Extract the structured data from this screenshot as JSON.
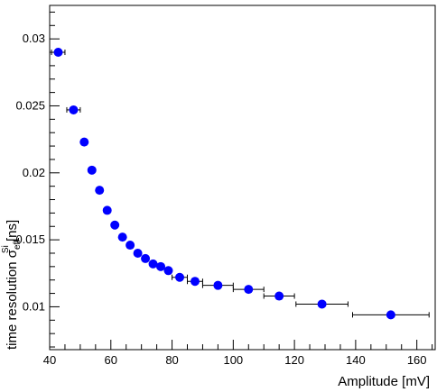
{
  "chart_data": {
    "type": "scatter",
    "xlabel": "Amplitude [mV]",
    "ylabel_main": "time resolution σ",
    "ylabel_subscript": "eff",
    "ylabel_superscript": "Si",
    "ylabel_unit": " [ns]",
    "xlim": [
      40,
      166
    ],
    "ylim": [
      0.0068,
      0.0325
    ],
    "x_ticks": [
      40,
      60,
      80,
      100,
      120,
      140,
      160
    ],
    "x_tick_labels": [
      "40",
      "60",
      "80",
      "100",
      "120",
      "140",
      "160"
    ],
    "y_ticks": [
      0.01,
      0.015,
      0.02,
      0.025,
      0.03
    ],
    "y_tick_labels": [
      "0.01",
      "0.015",
      "0.02",
      "0.025",
      "0.03"
    ],
    "grid": false,
    "marker_color": "#0000ff",
    "errorbar_color": "#000000",
    "points": [
      {
        "x": 42.8,
        "y": 0.029,
        "xerr": 2.2
      },
      {
        "x": 47.8,
        "y": 0.0247,
        "xerr": 2.2
      },
      {
        "x": 51.3,
        "y": 0.0223,
        "xerr": 0
      },
      {
        "x": 53.8,
        "y": 0.0202,
        "xerr": 0
      },
      {
        "x": 56.3,
        "y": 0.0187,
        "xerr": 0
      },
      {
        "x": 58.8,
        "y": 0.0172,
        "xerr": 0
      },
      {
        "x": 61.3,
        "y": 0.0161,
        "xerr": 0
      },
      {
        "x": 63.8,
        "y": 0.0152,
        "xerr": 0
      },
      {
        "x": 66.3,
        "y": 0.0146,
        "xerr": 0
      },
      {
        "x": 68.8,
        "y": 0.014,
        "xerr": 0
      },
      {
        "x": 71.3,
        "y": 0.0136,
        "xerr": 0
      },
      {
        "x": 73.8,
        "y": 0.0132,
        "xerr": 0
      },
      {
        "x": 76.3,
        "y": 0.013,
        "xerr": 0
      },
      {
        "x": 78.8,
        "y": 0.0127,
        "xerr": 0
      },
      {
        "x": 82.5,
        "y": 0.0122,
        "xerr": 2.5
      },
      {
        "x": 87.5,
        "y": 0.0119,
        "xerr": 2.5
      },
      {
        "x": 95.0,
        "y": 0.0116,
        "xerr": 5.0
      },
      {
        "x": 105.0,
        "y": 0.0113,
        "xerr": 5.0
      },
      {
        "x": 115.0,
        "y": 0.0108,
        "xerr": 5.0
      },
      {
        "x": 129.0,
        "y": 0.0102,
        "xerr": 8.5
      },
      {
        "x": 151.5,
        "y": 0.0094,
        "xerr": 12.5
      }
    ]
  }
}
